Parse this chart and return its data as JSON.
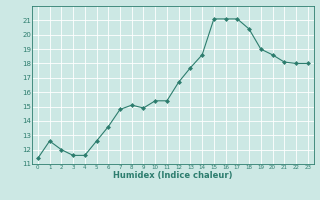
{
  "x": [
    0,
    1,
    2,
    3,
    4,
    5,
    6,
    7,
    8,
    9,
    10,
    11,
    12,
    13,
    14,
    15,
    16,
    17,
    18,
    19,
    20,
    21,
    22,
    23
  ],
  "y": [
    11.4,
    12.6,
    12.0,
    11.6,
    11.6,
    12.6,
    13.6,
    14.8,
    15.1,
    14.9,
    15.4,
    15.4,
    16.7,
    17.7,
    18.6,
    21.1,
    21.1,
    21.1,
    20.4,
    19.0,
    18.6,
    18.1,
    18.0,
    18.0
  ],
  "xlabel": "Humidex (Indice chaleur)",
  "ylim": [
    11,
    22
  ],
  "xlim": [
    -0.5,
    23.5
  ],
  "line_color": "#2d7d6e",
  "bg_color": "#cce8e4",
  "grid_color": "#ffffff",
  "tick_color": "#2d7d6e",
  "yticks": [
    11,
    12,
    13,
    14,
    15,
    16,
    17,
    18,
    19,
    20,
    21
  ],
  "xticks": [
    0,
    1,
    2,
    3,
    4,
    5,
    6,
    7,
    8,
    9,
    10,
    11,
    12,
    13,
    14,
    15,
    16,
    17,
    18,
    19,
    20,
    21,
    22,
    23
  ]
}
